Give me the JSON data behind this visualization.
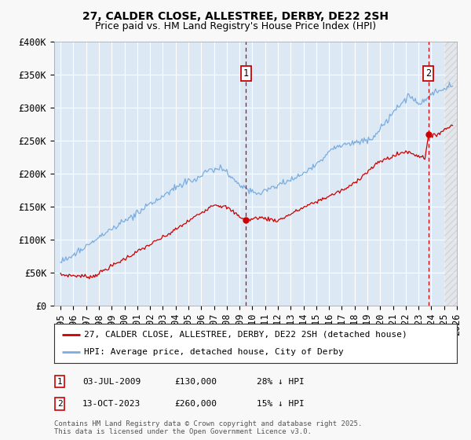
{
  "title1": "27, CALDER CLOSE, ALLESTREE, DERBY, DE22 2SH",
  "title2": "Price paid vs. HM Land Registry's House Price Index (HPI)",
  "ylabel_ticks": [
    "£0",
    "£50K",
    "£100K",
    "£150K",
    "£200K",
    "£250K",
    "£300K",
    "£350K",
    "£400K"
  ],
  "ylim": [
    0,
    400000
  ],
  "xlim_start": 1994.5,
  "xlim_end": 2026.0,
  "marker1_x": 2009.5,
  "marker1_label": "1",
  "marker1_date": "03-JUL-2009",
  "marker1_price": "£130,000",
  "marker1_hpi": "28% ↓ HPI",
  "marker2_x": 2023.78,
  "marker2_label": "2",
  "marker2_date": "13-OCT-2023",
  "marker2_price": "£260,000",
  "marker2_hpi": "15% ↓ HPI",
  "legend_line1": "27, CALDER CLOSE, ALLESTREE, DERBY, DE22 2SH (detached house)",
  "legend_line2": "HPI: Average price, detached house, City of Derby",
  "footer": "Contains HM Land Registry data © Crown copyright and database right 2025.\nThis data is licensed under the Open Government Licence v3.0.",
  "line_color_sold": "#cc0000",
  "line_color_hpi": "#7aade0",
  "background_plot": "#dce9f5",
  "background_fig": "#f8f8f8",
  "grid_color": "#ffffff",
  "title_fontsize": 10,
  "subtitle_fontsize": 9,
  "tick_fontsize": 8.5
}
